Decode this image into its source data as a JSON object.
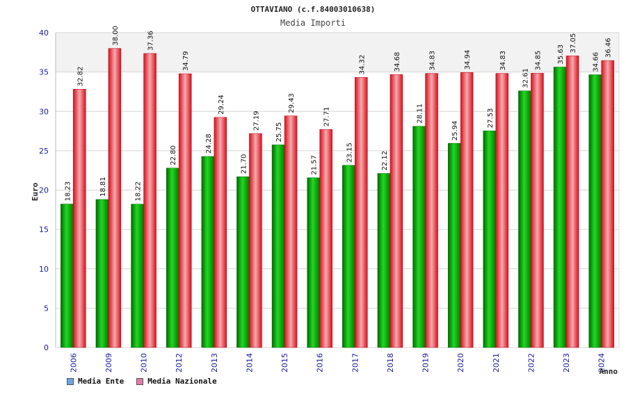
{
  "chart_data": {
    "type": "bar",
    "title": "OTTAVIANO (c.f.84003010638)",
    "subtitle": "Media Importi",
    "xlabel": "Anno",
    "ylabel": "Euro",
    "ylim": [
      0,
      40
    ],
    "yticks": [
      "0",
      "5",
      "10",
      "15",
      "20",
      "25",
      "30",
      "35",
      "40"
    ],
    "categories": [
      "2006",
      "2009",
      "2010",
      "2012",
      "2013",
      "2014",
      "2015",
      "2016",
      "2017",
      "2018",
      "2019",
      "2020",
      "2021",
      "2022",
      "2023",
      "2024"
    ],
    "series": [
      {
        "name": "Media Ente",
        "color": "#00b000",
        "values": [
          18.23,
          18.81,
          18.22,
          22.8,
          24.28,
          21.7,
          25.75,
          21.57,
          23.15,
          22.12,
          28.11,
          25.94,
          27.53,
          32.61,
          35.63,
          34.66
        ],
        "labels": [
          "18.23",
          "18.81",
          "18.22",
          "22.80",
          "24.28",
          "21.70",
          "25.75",
          "21.57",
          "23.15",
          "22.12",
          "28.11",
          "25.94",
          "27.53",
          "32.61",
          "35.63",
          "34.66"
        ]
      },
      {
        "name": "Media Nazionale",
        "color": "#e8202a",
        "values": [
          32.82,
          38.0,
          37.36,
          34.79,
          29.24,
          27.19,
          29.43,
          27.71,
          34.32,
          34.68,
          34.83,
          34.94,
          34.83,
          34.85,
          37.05,
          36.46
        ],
        "labels": [
          "32.82",
          "38.00",
          "37.36",
          "34.79",
          "29.24",
          "27.19",
          "29.43",
          "27.71",
          "34.32",
          "34.68",
          "34.83",
          "34.94",
          "34.83",
          "34.85",
          "37.05",
          "36.46"
        ]
      }
    ],
    "legend": [
      {
        "label": "Media Ente",
        "color": "#6aa6e8"
      },
      {
        "label": "Media Nazionale",
        "color": "#e07aa8"
      }
    ],
    "grid": true,
    "legend_position": "bottom-left"
  }
}
